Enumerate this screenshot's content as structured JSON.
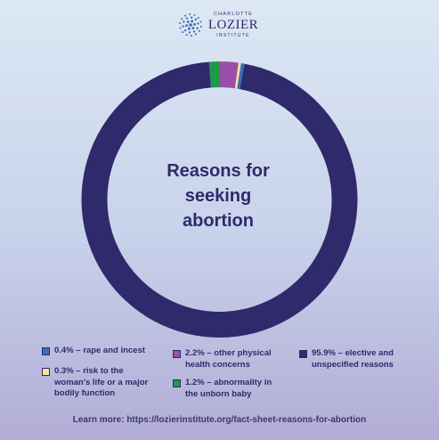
{
  "logo": {
    "top": "CHARLOTTE",
    "main": "LOZIER",
    "bottom": "INSTITUTE"
  },
  "chart_data": {
    "type": "pie",
    "title": "Reasons for\nseeking\nabortion",
    "categories": [
      "rape and incest",
      "risk to the woman's life or a major bodily function",
      "other physical health concerns",
      "abnormality in the unborn baby",
      "elective and unspecified reasons"
    ],
    "values": [
      0.4,
      0.3,
      2.2,
      1.2,
      95.9
    ],
    "colors": [
      "#3770b8",
      "#f4e59a",
      "#9b4fa8",
      "#1e9a4a",
      "#2e2a6b"
    ],
    "legend": [
      {
        "label": "0.4% – rape and incest",
        "color": "#3770b8"
      },
      {
        "label": "0.3% – risk to the\nwoman's life or a major\nbodily function",
        "color": "#f4e59a"
      },
      {
        "label": "2.2% – other physical\nhealth concerns",
        "color": "#9b4fa8"
      },
      {
        "label": "1.2% – abnormality in\nthe unborn baby",
        "color": "#1e9a4a"
      },
      {
        "label": "95.9% – elective and\nunspecified reasons",
        "color": "#2e2a6b"
      }
    ],
    "legend_position": "bottom"
  },
  "footer": "Learn more: https://lozierinstitute.org/fact-sheet-reasons-for-abortion"
}
